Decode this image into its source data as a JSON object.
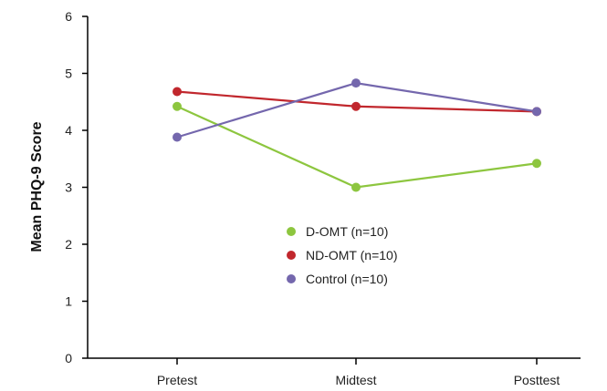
{
  "chart_data": {
    "type": "line",
    "title": "",
    "xlabel": "",
    "ylabel": "Mean PHQ-9 Score",
    "categories": [
      "Pretest",
      "Midtest",
      "Posttest"
    ],
    "ylim": [
      0,
      6
    ],
    "yticks": [
      "0",
      "1",
      "2",
      "3",
      "4",
      "5",
      "6"
    ],
    "grid": false,
    "legend_position": "center",
    "series": [
      {
        "name": "D-OMT (n=10)",
        "color": "#8dc63f",
        "values": [
          4.42,
          3.0,
          3.42
        ]
      },
      {
        "name": "ND-OMT (n=10)",
        "color": "#c1272d",
        "values": [
          4.68,
          4.42,
          4.33
        ]
      },
      {
        "name": "Control (n=10)",
        "color": "#7467ad",
        "values": [
          3.88,
          4.83,
          4.33
        ]
      }
    ]
  }
}
